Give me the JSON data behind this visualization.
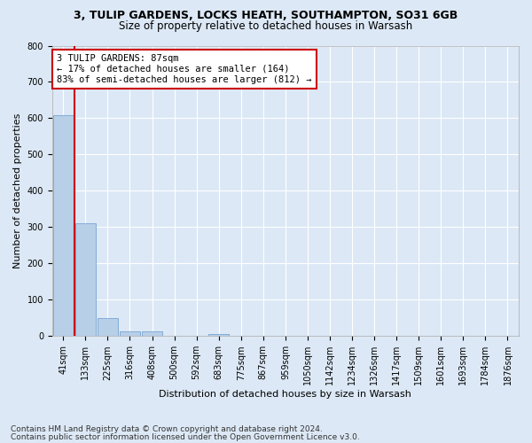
{
  "title1": "3, TULIP GARDENS, LOCKS HEATH, SOUTHAMPTON, SO31 6GB",
  "title2": "Size of property relative to detached houses in Warsash",
  "xlabel": "Distribution of detached houses by size in Warsash",
  "ylabel": "Number of detached properties",
  "footnote1": "Contains HM Land Registry data © Crown copyright and database right 2024.",
  "footnote2": "Contains public sector information licensed under the Open Government Licence v3.0.",
  "annotation_line1": "3 TULIP GARDENS: 87sqm",
  "annotation_line2": "← 17% of detached houses are smaller (164)",
  "annotation_line3": "83% of semi-detached houses are larger (812) →",
  "bar_labels": [
    "41sqm",
    "133sqm",
    "225sqm",
    "316sqm",
    "408sqm",
    "500sqm",
    "592sqm",
    "683sqm",
    "775sqm",
    "867sqm",
    "959sqm",
    "1050sqm",
    "1142sqm",
    "1234sqm",
    "1326sqm",
    "1417sqm",
    "1509sqm",
    "1601sqm",
    "1693sqm",
    "1784sqm",
    "1876sqm"
  ],
  "bar_values": [
    608,
    310,
    50,
    13,
    12,
    2,
    0,
    5,
    0,
    0,
    0,
    0,
    0,
    0,
    0,
    0,
    0,
    0,
    0,
    0,
    0
  ],
  "bar_color_normal": "#b8cfe8",
  "bar_edge_color": "#6699cc",
  "annotation_box_color": "#ffffff",
  "annotation_box_edge": "#cc0000",
  "vline_color": "#cc0000",
  "vline_x": 0.5,
  "ylim": [
    0,
    800
  ],
  "yticks": [
    0,
    100,
    200,
    300,
    400,
    500,
    600,
    700,
    800
  ],
  "background_color": "#dce8f5",
  "grid_color": "#ffffff",
  "title1_fontsize": 9,
  "title2_fontsize": 8.5,
  "axis_label_fontsize": 8,
  "tick_fontsize": 7,
  "annotation_fontsize": 7.5,
  "footnote_fontsize": 6.5
}
